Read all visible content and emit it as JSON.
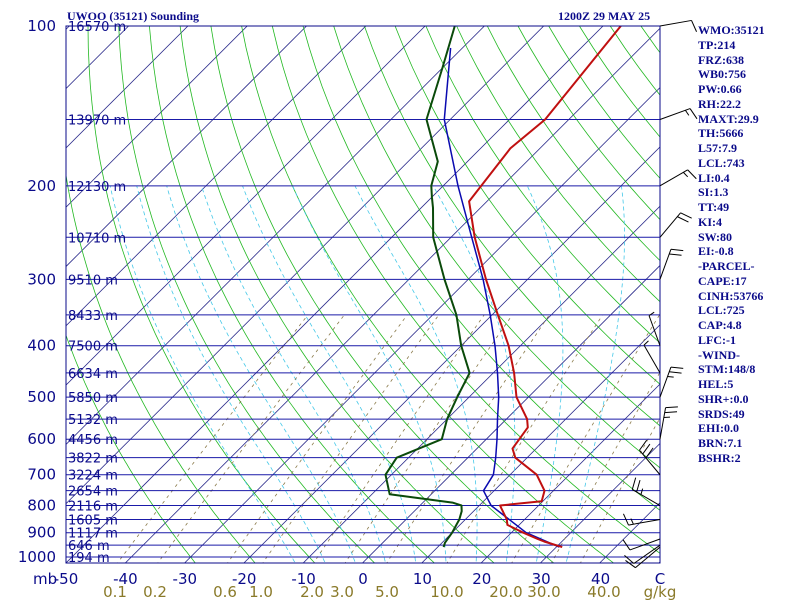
{
  "header": {
    "station_title": "UWOO (35121) Sounding",
    "valid_time": "1200Z 29 MAY 25"
  },
  "indices": [
    "WMO:35121",
    "TP:214",
    "FRZ:638",
    "WB0:756",
    "PW:0.66",
    "RH:22.2",
    "MAXT:29.9",
    "TH:5666",
    "L57:7.9",
    "LCL:743",
    "LI:0.4",
    "SI:1.3",
    "TT:49",
    "KI:4",
    "SW:80",
    "EI:-0.8",
    "-PARCEL-",
    "CAPE:17",
    "CINH:53766",
    "LCL:725",
    "CAP:4.8",
    "LFC:-1",
    "-WIND-",
    "STM:148/8",
    "HEL:5",
    "SHR+:0.0",
    "SRDS:49",
    "EHI:0.0",
    "BRN:7.1",
    "BSHR:2"
  ],
  "colors": {
    "isobar": "#1a1aa8",
    "isotherm": "#2a2a8a",
    "dry_adiabat": "#22b822",
    "moist_adiabat": "#44c8e8",
    "mixing_ratio": "#8a7a4a",
    "temperature": "#c01010",
    "dewpoint": "#0a4a0a",
    "parcel": "#0a0ab0",
    "frame": "#0a0a8a"
  },
  "chart_data": {
    "type": "skew-t",
    "title": "UWOO (35121) Sounding",
    "subtitle": "1200Z 29 MAY 25",
    "y_axis_label": "mb",
    "x_axis_unit": "C",
    "mixing_ratio_unit": "g/kg",
    "pressure_levels": [
      {
        "p": 100,
        "label": "100",
        "height": "16570 m"
      },
      {
        "p": 150,
        "label": "",
        "height": "13970 m"
      },
      {
        "p": 200,
        "label": "200",
        "height": "12130 m"
      },
      {
        "p": 250,
        "label": "",
        "height": "10710 m"
      },
      {
        "p": 300,
        "label": "300",
        "height": "9510 m"
      },
      {
        "p": 350,
        "label": "",
        "height": "8433 m"
      },
      {
        "p": 400,
        "label": "400",
        "height": "7500 m"
      },
      {
        "p": 450,
        "label": "",
        "height": "6634 m"
      },
      {
        "p": 500,
        "label": "500",
        "height": "5850 m"
      },
      {
        "p": 550,
        "label": "",
        "height": "5132 m"
      },
      {
        "p": 600,
        "label": "600",
        "height": "4456 m"
      },
      {
        "p": 650,
        "label": "",
        "height": "3822 m"
      },
      {
        "p": 700,
        "label": "700",
        "height": "3224 m"
      },
      {
        "p": 750,
        "label": "",
        "height": "2654 m"
      },
      {
        "p": 800,
        "label": "800",
        "height": "2116 m"
      },
      {
        "p": 850,
        "label": "",
        "height": "1605 m"
      },
      {
        "p": 900,
        "label": "900",
        "height": "1117 m"
      },
      {
        "p": 950,
        "label": "",
        "height": "646 m"
      },
      {
        "p": 1000,
        "label": "1000",
        "height": "194 m"
      }
    ],
    "temperature_ticks": [
      "-50",
      "-40",
      "-30",
      "-20",
      "-10",
      "0",
      "10",
      "20",
      "30",
      "40",
      "C"
    ],
    "mixing_ratio_ticks": [
      "0.1",
      "0.2",
      "0.6",
      "1.0",
      "2.0",
      "3.0",
      "5.0",
      "10.0",
      "20.0",
      "30.0",
      "40.0",
      "g/kg"
    ],
    "mixing_ratio_values": [
      0.1,
      0.2,
      0.6,
      1.0,
      2.0,
      3.0,
      5.0,
      10.0,
      20.0,
      30.0,
      40.0
    ],
    "temperature_profile": [
      [
        958,
        31.0
      ],
      [
        935,
        27.0
      ],
      [
        925,
        25.5
      ],
      [
        900,
        22.0
      ],
      [
        870,
        18.0
      ],
      [
        850,
        17.0
      ],
      [
        800,
        13.5
      ],
      [
        785,
        19.8
      ],
      [
        750,
        18.5
      ],
      [
        700,
        14.5
      ],
      [
        650,
        8.0
      ],
      [
        625,
        6.0
      ],
      [
        570,
        5.0
      ],
      [
        550,
        3.5
      ],
      [
        500,
        -2.0
      ],
      [
        450,
        -6.5
      ],
      [
        400,
        -12.0
      ],
      [
        350,
        -19.0
      ],
      [
        300,
        -27.0
      ],
      [
        250,
        -36.0
      ],
      [
        214,
        -43.0
      ],
      [
        170,
        -45.0
      ],
      [
        150,
        -44.0
      ],
      [
        100,
        -47.0
      ]
    ],
    "dewpoint_profile": [
      [
        958,
        11.0
      ],
      [
        940,
        10.5
      ],
      [
        900,
        10.0
      ],
      [
        850,
        9.0
      ],
      [
        820,
        8.0
      ],
      [
        800,
        7.0
      ],
      [
        790,
        5.0
      ],
      [
        762,
        -7.0
      ],
      [
        700,
        -11.0
      ],
      [
        650,
        -12.0
      ],
      [
        600,
        -7.5
      ],
      [
        550,
        -10.0
      ],
      [
        500,
        -12.0
      ],
      [
        450,
        -14.0
      ],
      [
        400,
        -20.0
      ],
      [
        350,
        -26.0
      ],
      [
        300,
        -34.0
      ],
      [
        250,
        -43.0
      ],
      [
        220,
        -48.0
      ],
      [
        210,
        -50.0
      ],
      [
        200,
        -52.0
      ],
      [
        180,
        -55.0
      ],
      [
        150,
        -64.0
      ],
      [
        120,
        -70.0
      ],
      [
        100,
        -75.0
      ]
    ],
    "parcel_profile": [
      [
        958,
        30.5
      ],
      [
        900,
        22.5
      ],
      [
        800,
        12.0
      ],
      [
        750,
        8.2
      ],
      [
        700,
        7.2
      ],
      [
        650,
        4.7
      ],
      [
        600,
        1.8
      ],
      [
        550,
        -1.5
      ],
      [
        500,
        -5.0
      ],
      [
        450,
        -9.3
      ],
      [
        400,
        -14.3
      ],
      [
        350,
        -20.3
      ],
      [
        300,
        -27.5
      ],
      [
        250,
        -36.5
      ],
      [
        200,
        -47.5
      ],
      [
        150,
        -61.0
      ],
      [
        110,
        -72.0
      ]
    ],
    "wind_barbs": [
      {
        "p": 958,
        "dir": 230,
        "kt": 10
      },
      {
        "p": 950,
        "dir": 235,
        "kt": 10
      },
      {
        "p": 925,
        "dir": 250,
        "kt": 10
      },
      {
        "p": 850,
        "dir": 260,
        "kt": 15
      },
      {
        "p": 800,
        "dir": 300,
        "kt": 25
      },
      {
        "p": 700,
        "dir": 320,
        "kt": 30
      },
      {
        "p": 600,
        "dir": 10,
        "kt": 25
      },
      {
        "p": 500,
        "dir": 20,
        "kt": 25
      },
      {
        "p": 450,
        "dir": 330,
        "kt": 5
      },
      {
        "p": 400,
        "dir": 340,
        "kt": 5
      },
      {
        "p": 300,
        "dir": 20,
        "kt": 20
      },
      {
        "p": 250,
        "dir": 40,
        "kt": 20
      },
      {
        "p": 200,
        "dir": 60,
        "kt": 15
      },
      {
        "p": 150,
        "dir": 70,
        "kt": 15
      },
      {
        "p": 100,
        "dir": 80,
        "kt": 10
      }
    ],
    "grid": true
  }
}
